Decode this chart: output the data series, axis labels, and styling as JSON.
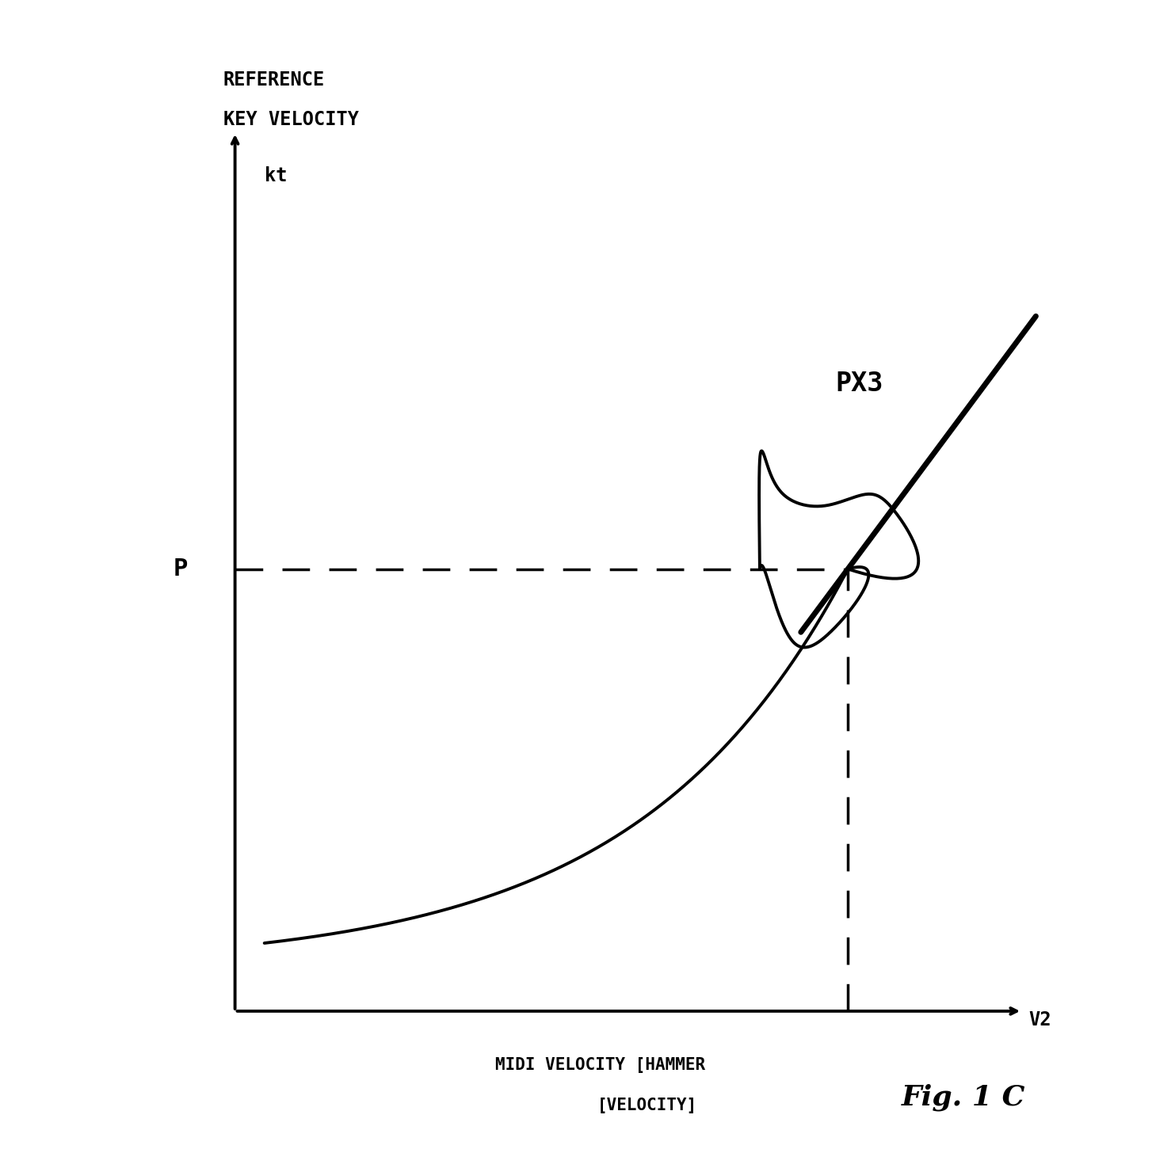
{
  "ylabel_line1": "REFERENCE",
  "ylabel_line2": "KEY VELOCITY",
  "ylabel_line3": "kt",
  "xlabel_line1": "MIDI VELOCITY [HAMMER",
  "xlabel_line2": "[VELOCITY]",
  "x_end_label": "V2",
  "p_label": "P",
  "px3_label": "PX3",
  "fig_label": "Fig. 1 C",
  "bg_color": "#ffffff",
  "line_color": "#000000",
  "fig_width": 14.83,
  "fig_height": 14.51
}
